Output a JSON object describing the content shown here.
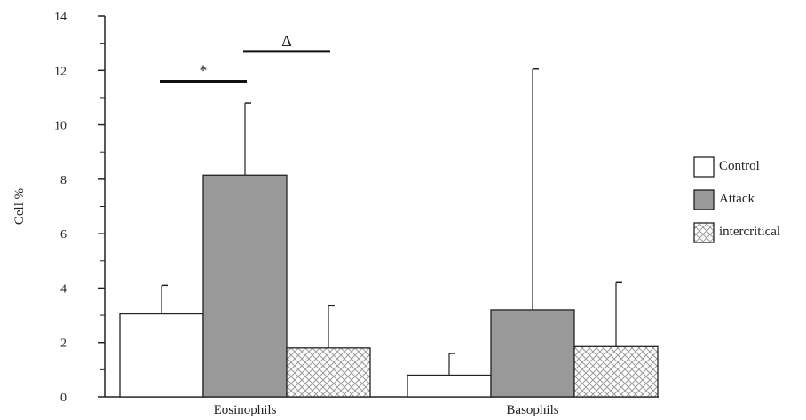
{
  "chart_data": {
    "type": "bar",
    "categories": [
      "Eosinophils",
      "Basophils"
    ],
    "series": [
      {
        "name": "Control",
        "values": [
          3.05,
          0.8
        ],
        "error_upper": [
          4.1,
          1.6
        ],
        "fill": "white"
      },
      {
        "name": "Attack",
        "values": [
          8.15,
          3.2
        ],
        "error_upper": [
          10.8,
          12.05
        ],
        "fill": "#999999"
      },
      {
        "name": "intercritical",
        "values": [
          1.8,
          1.85
        ],
        "error_upper": [
          3.35,
          4.2
        ],
        "fill": "crosshatch"
      }
    ],
    "ylabel": "Cell  %",
    "xlabel": "",
    "ylim": [
      0,
      14
    ],
    "yticks": [
      "0",
      "2",
      "4",
      "6",
      "8",
      "10",
      "12",
      "14"
    ],
    "grid": false,
    "legend_position": "right",
    "annotations": [
      {
        "text": "*",
        "category": "Eosinophils",
        "from_series": "Control",
        "to_series": "Attack",
        "y": 11.6
      },
      {
        "text": "Δ",
        "category": "Eosinophils",
        "from_series": "Attack",
        "to_series": "intercritical",
        "y": 12.7
      }
    ]
  },
  "colors": {
    "axis": "#222222",
    "attack_fill": "#999999",
    "hatch": "#9a9a9a"
  }
}
